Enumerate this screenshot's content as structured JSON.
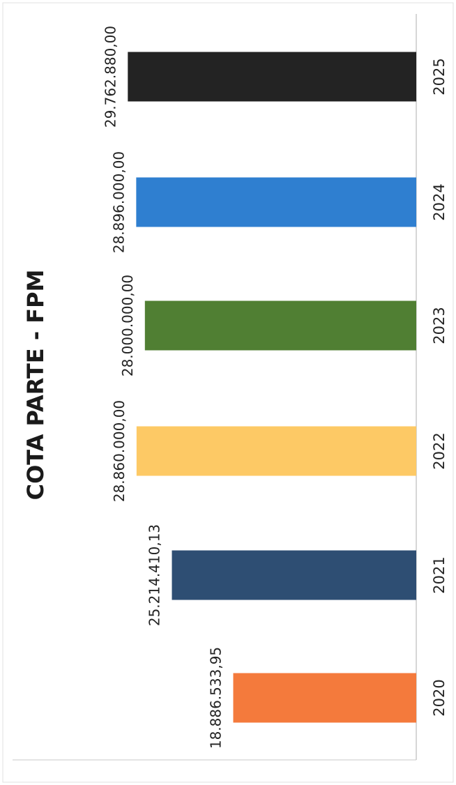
{
  "chart_data": {
    "type": "bar",
    "orientation": "horizontal",
    "title": "COTA PARTE - FPM",
    "categories": [
      "2020",
      "2021",
      "2022",
      "2023",
      "2024",
      "2025"
    ],
    "values": [
      18886533.95,
      25214410.13,
      28860000.0,
      28000000.0,
      28896000.0,
      29762880.0
    ],
    "value_labels": [
      "18.886.533,95",
      "25.214.410,13",
      "28.860.000,00",
      "28.000.000,00",
      "28.896.000,00",
      "29.762.880,00"
    ],
    "colors": [
      "#F47A3C",
      "#2E4E73",
      "#FDC965",
      "#507F33",
      "#2F7FD0",
      "#232323"
    ],
    "xlabel": "",
    "ylabel": "",
    "xlim": [
      0,
      32000000
    ],
    "grid": false,
    "legend": "none"
  }
}
